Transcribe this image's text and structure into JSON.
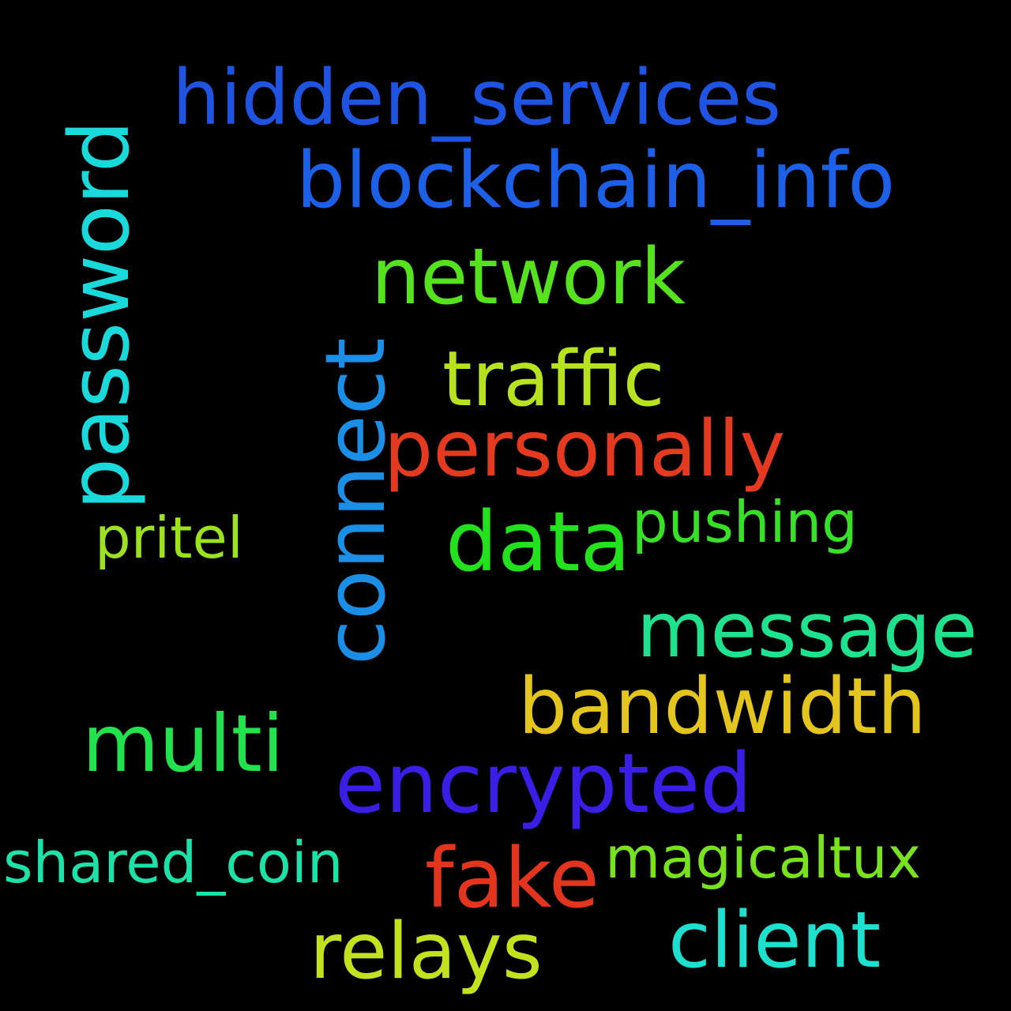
{
  "words": {
    "hidden_services": {
      "text": "hidden_services",
      "color": "#1f54e3"
    },
    "blockchain_info": {
      "text": "blockchain_info",
      "color": "#1d60e8"
    },
    "password": {
      "text": "password",
      "color": "#1ad9da"
    },
    "network": {
      "text": "network",
      "color": "#56e31e"
    },
    "traffic": {
      "text": "traffic",
      "color": "#b6e21e"
    },
    "connect": {
      "text": "connect",
      "color": "#1b8ee5"
    },
    "personally": {
      "text": "personally",
      "color": "#e63a20"
    },
    "pritel": {
      "text": "pritel",
      "color": "#9de21e"
    },
    "data": {
      "text": "data",
      "color": "#23e21d"
    },
    "pushing": {
      "text": "pushing",
      "color": "#37e226"
    },
    "message": {
      "text": "message",
      "color": "#1fe28e"
    },
    "bandwidth": {
      "text": "bandwidth",
      "color": "#e3c51e"
    },
    "multi": {
      "text": "multi",
      "color": "#22e24e"
    },
    "encrypted": {
      "text": "encrypted",
      "color": "#3a1ee6"
    },
    "shared_coin": {
      "text": "shared_coin",
      "color": "#1de2a8"
    },
    "fake": {
      "text": "fake",
      "color": "#e3351e"
    },
    "magicaltux": {
      "text": "magicaltux",
      "color": "#78e21e"
    },
    "relays": {
      "text": "relays",
      "color": "#c3e21e"
    },
    "client": {
      "text": "client",
      "color": "#1ee0cf"
    }
  }
}
